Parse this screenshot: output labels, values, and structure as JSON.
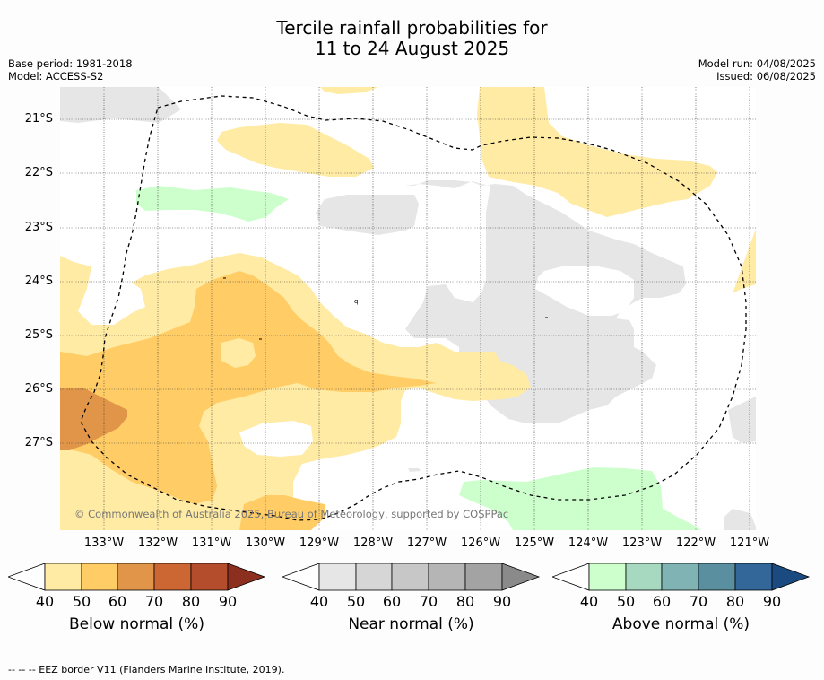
{
  "title_line1": "Tercile rainfall probabilities for",
  "title_line2": "11 to 24 August 2025",
  "base_period": "Base period: 1981-2018",
  "model": "Model: ACCESS-S2",
  "model_run": "Model run: 04/08/2025",
  "issued": "Issued: 06/08/2025",
  "copyright": "© Commonwealth of Australia 2025, Bureau of Meteorology, supported by COSPPac",
  "lat_labels": [
    "21°S",
    "22°S",
    "23°S",
    "24°S",
    "25°S",
    "26°S",
    "27°S"
  ],
  "lon_labels": [
    "133°W",
    "132°W",
    "131°W",
    "130°W",
    "129°W",
    "128°W",
    "127°W",
    "126°W",
    "125°W",
    "124°W",
    "123°W",
    "122°W",
    "121°W"
  ],
  "colors": {
    "below": [
      "#ffeba3",
      "#ffcc66",
      "#e09548",
      "#cc6633",
      "#b34d2b",
      "#8c2f1e"
    ],
    "near": [
      "#e6e6e6",
      "#d6d6d6",
      "#c7c7c7",
      "#b5b5b5",
      "#a3a3a3",
      "#8a8a8a"
    ],
    "above": [
      "#ccffcc",
      "#a6d9bf",
      "#80b3b3",
      "#598f9f",
      "#336699",
      "#1a4a80"
    ]
  },
  "colorbars": [
    {
      "title": "Below normal (%)",
      "ticks": [
        "40",
        "50",
        "60",
        "70",
        "80",
        "90"
      ]
    },
    {
      "title": "Near normal (%)",
      "ticks": [
        "40",
        "50",
        "60",
        "70",
        "80",
        "90"
      ]
    },
    {
      "title": "Above normal (%)",
      "ticks": [
        "40",
        "50",
        "60",
        "70",
        "80",
        "90"
      ]
    }
  ],
  "footnote": "--  --  -- EEZ border V11 (Flanders Marine Institute, 2019)."
}
